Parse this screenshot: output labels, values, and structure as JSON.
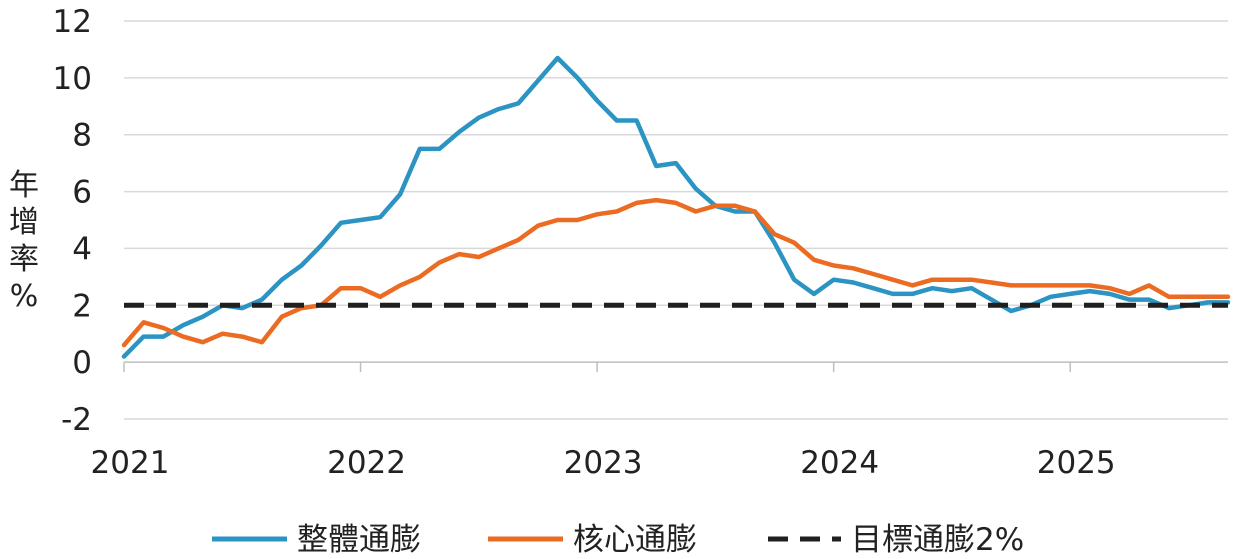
{
  "chart_data": {
    "type": "line",
    "title": "",
    "ylabel": "年增率 %",
    "xlabel": "",
    "ylim": [
      -2,
      12
    ],
    "xlim": [
      2021.0,
      2025.667
    ],
    "yticks": [
      -2,
      0,
      2,
      4,
      6,
      8,
      10,
      12
    ],
    "xticks": [
      2021,
      2022,
      2023,
      2024,
      2025
    ],
    "grid": "horizontal",
    "legend_position": "bottom",
    "series": [
      {
        "name": "整體通膨",
        "color": "#2b94c3",
        "style": "solid",
        "x": [
          2021.0,
          2021.083,
          2021.167,
          2021.25,
          2021.333,
          2021.417,
          2021.5,
          2021.583,
          2021.667,
          2021.75,
          2021.833,
          2021.917,
          2022.0,
          2022.083,
          2022.167,
          2022.25,
          2022.333,
          2022.417,
          2022.5,
          2022.583,
          2022.667,
          2022.75,
          2022.833,
          2022.917,
          2023.0,
          2023.083,
          2023.167,
          2023.25,
          2023.333,
          2023.417,
          2023.5,
          2023.583,
          2023.667,
          2023.75,
          2023.833,
          2023.917,
          2024.0,
          2024.083,
          2024.167,
          2024.25,
          2024.333,
          2024.417,
          2024.5,
          2024.583,
          2024.667,
          2024.75,
          2024.833,
          2024.917,
          2025.0,
          2025.083,
          2025.167,
          2025.25,
          2025.333,
          2025.417,
          2025.5,
          2025.583,
          2025.667
        ],
        "y": [
          0.2,
          0.9,
          0.9,
          1.3,
          1.6,
          2.0,
          1.9,
          2.2,
          2.9,
          3.4,
          4.1,
          4.9,
          5.0,
          5.1,
          5.9,
          7.5,
          7.5,
          8.1,
          8.6,
          8.9,
          9.1,
          9.9,
          10.7,
          10.0,
          9.2,
          8.5,
          8.5,
          6.9,
          7.0,
          6.1,
          5.5,
          5.3,
          5.3,
          4.2,
          2.9,
          2.4,
          2.9,
          2.8,
          2.6,
          2.4,
          2.4,
          2.6,
          2.5,
          2.6,
          2.2,
          1.8,
          2.0,
          2.3,
          2.4,
          2.5,
          2.4,
          2.2,
          2.2,
          1.9,
          2.0,
          2.1,
          2.1
        ]
      },
      {
        "name": "核心通膨",
        "color": "#ec6b23",
        "style": "solid",
        "x": [
          2021.0,
          2021.083,
          2021.167,
          2021.25,
          2021.333,
          2021.417,
          2021.5,
          2021.583,
          2021.667,
          2021.75,
          2021.833,
          2021.917,
          2022.0,
          2022.083,
          2022.167,
          2022.25,
          2022.333,
          2022.417,
          2022.5,
          2022.583,
          2022.667,
          2022.75,
          2022.833,
          2022.917,
          2023.0,
          2023.083,
          2023.167,
          2023.25,
          2023.333,
          2023.417,
          2023.5,
          2023.583,
          2023.667,
          2023.75,
          2023.833,
          2023.917,
          2024.0,
          2024.083,
          2024.167,
          2024.25,
          2024.333,
          2024.417,
          2024.5,
          2024.583,
          2024.667,
          2024.75,
          2024.833,
          2024.917,
          2025.0,
          2025.083,
          2025.167,
          2025.25,
          2025.333,
          2025.417,
          2025.5,
          2025.583,
          2025.667
        ],
        "y": [
          0.6,
          1.4,
          1.2,
          0.9,
          0.7,
          1.0,
          0.9,
          0.7,
          1.6,
          1.9,
          2.0,
          2.6,
          2.6,
          2.3,
          2.7,
          3.0,
          3.5,
          3.8,
          3.7,
          4.0,
          4.3,
          4.8,
          5.0,
          5.0,
          5.2,
          5.3,
          5.6,
          5.7,
          5.6,
          5.3,
          5.5,
          5.5,
          5.3,
          4.5,
          4.2,
          3.6,
          3.4,
          3.3,
          3.1,
          2.9,
          2.7,
          2.9,
          2.9,
          2.9,
          2.8,
          2.7,
          2.7,
          2.7,
          2.7,
          2.7,
          2.6,
          2.4,
          2.7,
          2.3,
          2.3,
          2.3,
          2.3
        ]
      },
      {
        "name": "目標通膨2%",
        "color": "#1f1f1f",
        "style": "dashed",
        "x": [
          2021.0,
          2025.667
        ],
        "y": [
          2,
          2
        ]
      }
    ]
  }
}
